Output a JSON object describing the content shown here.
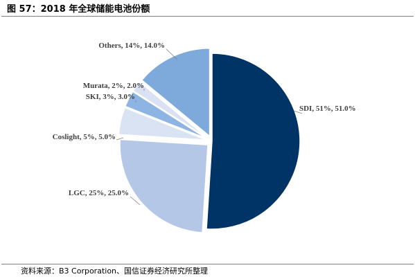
{
  "figure": {
    "title": "图 57：2018 年全球储能电池份额",
    "source": "资料来源：B3 Corporation、国信证券经济研究所整理"
  },
  "colors": {
    "SDI": "#003366",
    "LGC": "#b4c7e7",
    "Coslight": "#dae3f3",
    "SKI": "#8eb4e3",
    "Murata": "#d9e1f2",
    "Others": "#7eaadb"
  },
  "chart_data": {
    "type": "pie",
    "title": "",
    "categories": [
      "SDI",
      "LGC",
      "Coslight",
      "SKI",
      "Murata",
      "Others"
    ],
    "values": [
      51,
      25,
      5,
      3,
      2,
      14
    ],
    "labels": [
      "SDI, 51%, 51.0%",
      "LGC, 25%, 25.0%",
      "Coslight, 5%, 5.0%",
      "SKI, 3%, 3.0%",
      "Murata, 2%, 2.0%",
      "Others, 14%, 14.0%"
    ]
  }
}
